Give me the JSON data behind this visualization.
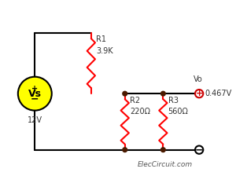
{
  "bg_color": "#ffffff",
  "wire_color": "#000000",
  "resistor_color": "#ff0000",
  "dot_color": "#4a1a00",
  "source_circle_color": "#ffff00",
  "source_border_color": "#000000",
  "source_text": "Vs",
  "source_plus": "+",
  "source_minus": "−",
  "source_voltage": "12V",
  "R1_label": "R1",
  "R1_value": "3.9K",
  "R2_label": "R2",
  "R2_value": "220Ω",
  "R3_label": "R3",
  "R3_value": "560Ω",
  "Vo_label": "Vo",
  "Vo_value": "0.467V",
  "footer": "ElecCircuit.com",
  "footer_color": "#555555",
  "plus_node_color": "#cc0000",
  "minus_node_color": "#000000",
  "node_dot_color": "#4a1a00",
  "title_color": "#333333"
}
